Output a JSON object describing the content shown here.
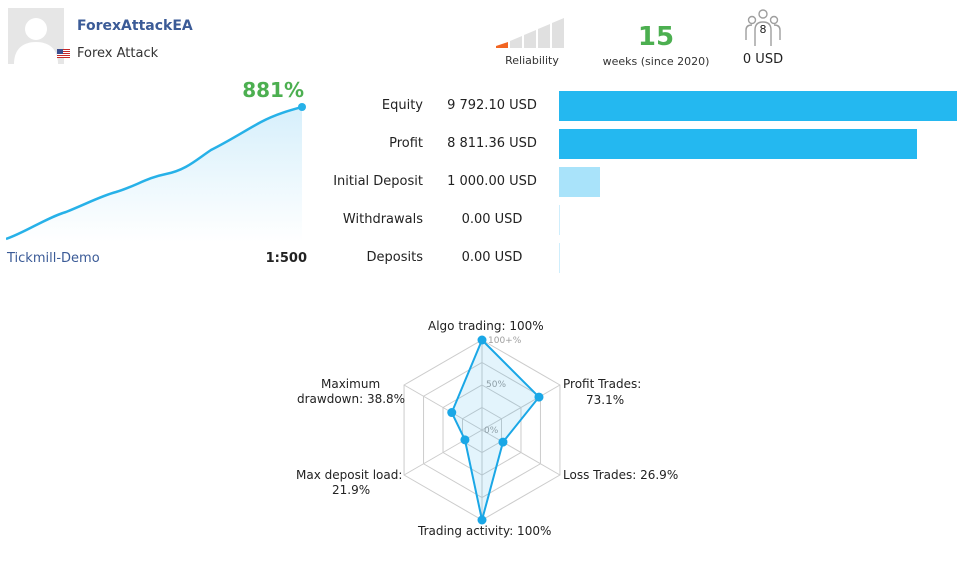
{
  "profile": {
    "name": "ForexAttackEA",
    "subtitle": "Forex Attack",
    "avatar_icon": "user-avatar-icon",
    "flag_icon": "us-flag-icon"
  },
  "reliability": {
    "label": "Reliability",
    "level_fraction": 0.2,
    "active_color": "#f26522",
    "bars_total": 5,
    "bars_active": 1
  },
  "weeks": {
    "value": "15",
    "label": "weeks (since 2020)"
  },
  "subscribers": {
    "count": "8",
    "value": "0 USD",
    "icon": "subscribers-icon"
  },
  "growth": {
    "percent": "881%",
    "broker": "Tickmill-Demo",
    "leverage": "1:500",
    "color": "#27b1e8"
  },
  "stats": [
    {
      "label": "Equity",
      "value": "9 792.10 USD",
      "amount": 9792.1,
      "color": "#24b8f0"
    },
    {
      "label": "Profit",
      "value": "8 811.36 USD",
      "amount": 8811.36,
      "color": "#24b8f0"
    },
    {
      "label": "Initial Deposit",
      "value": "1 000.00 USD",
      "amount": 1000.0,
      "color": "#a9e3fa"
    },
    {
      "label": "Withdrawals",
      "value": "0.00 USD",
      "amount": 0,
      "color": "#a9e3fa"
    },
    {
      "label": "Deposits",
      "value": "0.00 USD",
      "amount": 0,
      "color": "#a9e3fa"
    }
  ],
  "radar": {
    "ring_labels": [
      "100+%",
      "50%",
      "0%"
    ],
    "axes": [
      {
        "label": "Algo trading: 100%",
        "value": 100
      },
      {
        "label": "Profit Trades: 73.1%",
        "value": 73.1
      },
      {
        "label": "Loss Trades: 26.9%",
        "value": 26.9
      },
      {
        "label": "Trading activity: 100%",
        "value": 100
      },
      {
        "label": "Max deposit load: 21.9%",
        "value": 21.9
      },
      {
        "label": "Maximum drawdown: 38.8%",
        "value": 38.8
      }
    ],
    "label_lines": {
      "top": "Algo trading: 100%",
      "upper_right_1": "Profit Trades:",
      "upper_right_2": "73.1%",
      "lower_right": "Loss Trades: 26.9%",
      "bottom": "Trading activity: 100%",
      "lower_left_1": "Max deposit load:",
      "lower_left_2": "21.9%",
      "upper_left_1": "Maximum",
      "upper_left_2": "drawdown: 38.8%"
    },
    "color": "#1aa7e6"
  }
}
